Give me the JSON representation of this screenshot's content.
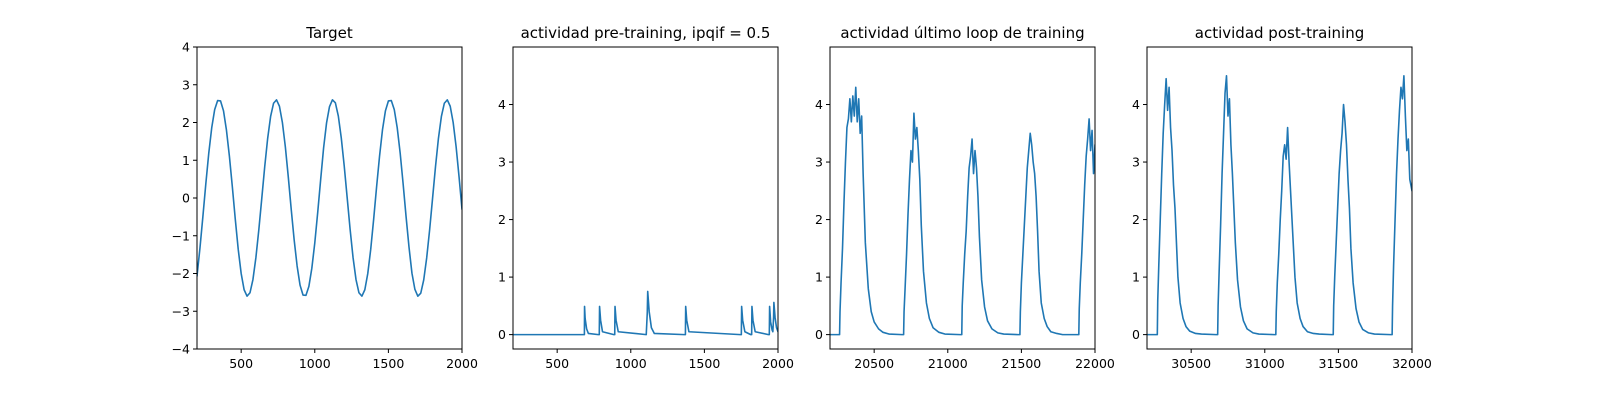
{
  "figure": {
    "background": "#ffffff",
    "line_color": "#1f77b4"
  },
  "chart_data": [
    {
      "type": "line",
      "title": "Target",
      "xlabel": "",
      "ylabel": "",
      "xlim": [
        200,
        2000
      ],
      "ylim": [
        -4,
        4
      ],
      "xticks": [
        500,
        1000,
        1500,
        2000
      ],
      "yticks": [
        -4,
        -3,
        -2,
        -1,
        0,
        1,
        2,
        3,
        4
      ],
      "xtick_labels": [
        "500",
        "1000",
        "1500",
        "2000"
      ],
      "ytick_labels": [
        "−4",
        "−3",
        "−2",
        "−1",
        "0",
        "1",
        "2",
        "3",
        "4"
      ],
      "grid": false,
      "series": [
        {
          "x": [
            200,
            220,
            240,
            260,
            280,
            300,
            320,
            340,
            360,
            380,
            400,
            420,
            440,
            460,
            480,
            500,
            520,
            540,
            560,
            580,
            600,
            620,
            640,
            660,
            680,
            700,
            720,
            740,
            760,
            780,
            800,
            820,
            840,
            860,
            880,
            900,
            920,
            940,
            960,
            980,
            1000,
            1020,
            1040,
            1060,
            1080,
            1100,
            1120,
            1140,
            1160,
            1180,
            1200,
            1220,
            1240,
            1260,
            1280,
            1300,
            1320,
            1340,
            1360,
            1380,
            1400,
            1420,
            1440,
            1460,
            1480,
            1500,
            1520,
            1540,
            1560,
            1580,
            1600,
            1620,
            1640,
            1660,
            1680,
            1700,
            1720,
            1740,
            1760,
            1780,
            1800,
            1820,
            1840,
            1860,
            1880,
            1900,
            1920,
            1940,
            1960,
            1980,
            2000
          ],
          "y": [
            -2.07,
            -1.33,
            -0.49,
            0.38,
            1.19,
            1.86,
            2.34,
            2.58,
            2.57,
            2.31,
            1.8,
            1.11,
            0.3,
            -0.56,
            -1.36,
            -2.0,
            -2.43,
            -2.6,
            -2.51,
            -2.16,
            -1.58,
            -0.84,
            -0.01,
            0.83,
            1.58,
            2.16,
            2.51,
            2.6,
            2.43,
            2.0,
            1.36,
            0.56,
            -0.3,
            -1.11,
            -1.8,
            -2.31,
            -2.57,
            -2.58,
            -2.34,
            -1.86,
            -1.19,
            -0.38,
            0.49,
            1.33,
            1.99,
            2.42,
            2.6,
            2.52,
            2.17,
            1.59,
            0.85,
            0.01,
            -0.83,
            -1.58,
            -2.16,
            -2.51,
            -2.6,
            -2.43,
            -2.0,
            -1.36,
            -0.56,
            0.3,
            1.11,
            1.81,
            2.31,
            2.57,
            2.58,
            2.34,
            1.86,
            1.19,
            0.38,
            -0.49,
            -1.3,
            -1.99,
            -2.42,
            -2.6,
            -2.52,
            -2.17,
            -1.59,
            -0.85,
            -0.01,
            0.83,
            1.58,
            2.16,
            2.51,
            2.6,
            2.43,
            2.0,
            1.36,
            0.56,
            -0.3
          ]
        }
      ]
    },
    {
      "type": "line",
      "title": "actividad pre-training, ipqif = 0.5",
      "xlabel": "",
      "ylabel": "",
      "xlim": [
        200,
        2000
      ],
      "ylim": [
        -0.25,
        5.0
      ],
      "xticks": [
        500,
        1000,
        1500,
        2000
      ],
      "yticks": [
        0,
        1,
        2,
        3,
        4
      ],
      "xtick_labels": [
        "500",
        "1000",
        "1500",
        "2000"
      ],
      "ytick_labels": [
        "0",
        "1",
        "2",
        "3",
        "4"
      ],
      "grid": false,
      "series": [
        {
          "x": [
            200,
            685,
            686,
            690,
            700,
            712,
            780,
            786,
            788,
            795,
            808,
            885,
            891,
            893,
            900,
            915,
            1105,
            1112,
            1115,
            1125,
            1140,
            1160,
            1365,
            1371,
            1373,
            1380,
            1395,
            1745,
            1751,
            1753,
            1760,
            1775,
            1815,
            1821,
            1823,
            1830,
            1845,
            1935,
            1941,
            1943,
            1950,
            1960,
            1965,
            1970,
            1972,
            1980,
            1990,
            2000
          ],
          "y": [
            0,
            0,
            0.49,
            0.28,
            0.1,
            0.02,
            0,
            0,
            0.49,
            0.25,
            0.05,
            0,
            0,
            0.49,
            0.25,
            0.05,
            0,
            0.38,
            0.75,
            0.4,
            0.12,
            0.02,
            0,
            0,
            0.49,
            0.25,
            0.05,
            0,
            0,
            0.49,
            0.25,
            0.05,
            0,
            0,
            0.49,
            0.25,
            0.05,
            0,
            0,
            0.49,
            0.22,
            0.08,
            0.05,
            0.3,
            0.56,
            0.3,
            0.12,
            0.05
          ]
        }
      ]
    },
    {
      "type": "line",
      "title": "actividad último loop de training",
      "xlabel": "",
      "ylabel": "",
      "xlim": [
        20200,
        22000
      ],
      "ylim": [
        -0.25,
        5.0
      ],
      "xticks": [
        20500,
        21000,
        21500,
        22000
      ],
      "yticks": [
        0,
        1,
        2,
        3,
        4
      ],
      "xtick_labels": [
        "20500",
        "21000",
        "21500",
        "22000"
      ],
      "ytick_labels": [
        "0",
        "1",
        "2",
        "3",
        "4"
      ],
      "grid": false,
      "series": [
        {
          "x": [
            20200,
            20265,
            20268,
            20275,
            20285,
            20295,
            20305,
            20315,
            20325,
            20335,
            20345,
            20355,
            20365,
            20375,
            20385,
            20395,
            20405,
            20415,
            20425,
            20440,
            20460,
            20480,
            20500,
            20530,
            20560,
            20600,
            20690,
            20700,
            20703,
            20710,
            20720,
            20730,
            20740,
            20750,
            20760,
            20770,
            20780,
            20790,
            20800,
            20810,
            20820,
            20835,
            20855,
            20875,
            20900,
            20940,
            20980,
            21085,
            21095,
            21098,
            21105,
            21115,
            21125,
            21135,
            21145,
            21155,
            21165,
            21175,
            21185,
            21195,
            21205,
            21215,
            21230,
            21250,
            21270,
            21300,
            21340,
            21380,
            21480,
            21490,
            21493,
            21500,
            21510,
            21520,
            21530,
            21540,
            21550,
            21560,
            21570,
            21580,
            21590,
            21600,
            21610,
            21620,
            21635,
            21655,
            21675,
            21700,
            21740,
            21780,
            21880,
            21890,
            21893,
            21900,
            21910,
            21920,
            21930,
            21940,
            21950,
            21960,
            21970,
            21980,
            21990,
            22000
          ],
          "y": [
            0,
            0,
            0.4,
            0.9,
            1.5,
            2.3,
            3.0,
            3.6,
            3.75,
            4.1,
            3.7,
            4.15,
            3.8,
            4.3,
            3.7,
            4.1,
            3.5,
            3.8,
            2.8,
            1.6,
            0.8,
            0.4,
            0.22,
            0.1,
            0.04,
            0.01,
            0,
            0,
            0.4,
            0.8,
            1.4,
            2.1,
            2.7,
            3.2,
            3.0,
            3.85,
            3.4,
            3.6,
            3.2,
            2.7,
            1.9,
            1.1,
            0.55,
            0.28,
            0.12,
            0.04,
            0.01,
            0,
            0,
            0.5,
            0.9,
            1.4,
            1.8,
            2.4,
            2.9,
            3.1,
            3.4,
            2.8,
            3.2,
            2.9,
            2.4,
            1.7,
            0.95,
            0.48,
            0.24,
            0.1,
            0.03,
            0.01,
            0,
            0,
            0.4,
            0.9,
            1.4,
            1.9,
            2.4,
            2.9,
            3.2,
            3.5,
            3.3,
            3.0,
            2.8,
            2.4,
            1.8,
            1.1,
            0.55,
            0.28,
            0.14,
            0.05,
            0.02,
            0,
            0,
            0,
            0.45,
            0.9,
            1.4,
            2.0,
            2.6,
            3.1,
            3.4,
            3.75,
            3.2,
            3.55,
            2.8,
            3.3
          ]
        }
      ]
    },
    {
      "type": "line",
      "title": "actividad post-training",
      "xlabel": "",
      "ylabel": "",
      "xlim": [
        30200,
        32000
      ],
      "ylim": [
        -0.25,
        5.0
      ],
      "xticks": [
        30500,
        31000,
        31500,
        32000
      ],
      "yticks": [
        0,
        1,
        2,
        3,
        4
      ],
      "xtick_labels": [
        "30500",
        "31000",
        "31500",
        "32000"
      ],
      "ytick_labels": [
        "0",
        "1",
        "2",
        "3",
        "4"
      ],
      "grid": false,
      "series": [
        {
          "x": [
            30200,
            30270,
            30273,
            30280,
            30290,
            30300,
            30310,
            30320,
            30330,
            30340,
            30350,
            30360,
            30370,
            30380,
            30390,
            30400,
            30410,
            30425,
            30445,
            30465,
            30490,
            30530,
            30570,
            30670,
            30680,
            30683,
            30690,
            30700,
            30710,
            30720,
            30730,
            30740,
            30750,
            30760,
            30770,
            30780,
            30790,
            30800,
            30815,
            30835,
            30855,
            30880,
            30920,
            30960,
            31065,
            31075,
            31078,
            31085,
            31095,
            31105,
            31115,
            31125,
            31135,
            31145,
            31155,
            31165,
            31175,
            31185,
            31195,
            31205,
            31220,
            31240,
            31260,
            31290,
            31330,
            31370,
            31455,
            31465,
            31468,
            31475,
            31485,
            31495,
            31505,
            31515,
            31525,
            31535,
            31545,
            31555,
            31565,
            31575,
            31585,
            31600,
            31620,
            31640,
            31665,
            31705,
            31745,
            31855,
            31865,
            31868,
            31875,
            31885,
            31895,
            31905,
            31915,
            31925,
            31935,
            31945,
            31955,
            31965,
            31975,
            31985,
            32000
          ],
          "y": [
            0,
            0,
            0.6,
            1.2,
            2.0,
            2.8,
            3.5,
            4.0,
            4.45,
            3.9,
            4.3,
            3.6,
            3.2,
            2.6,
            2.2,
            1.6,
            1.0,
            0.55,
            0.28,
            0.14,
            0.06,
            0.02,
            0.01,
            0,
            0,
            0.5,
            1.1,
            1.9,
            2.8,
            3.5,
            4.2,
            4.5,
            3.8,
            4.1,
            3.3,
            2.8,
            2.2,
            1.6,
            0.95,
            0.48,
            0.24,
            0.1,
            0.03,
            0.01,
            0,
            0,
            0.4,
            0.9,
            1.4,
            2.0,
            2.5,
            3.1,
            3.3,
            3.05,
            3.6,
            3.0,
            2.5,
            2.0,
            1.5,
            1.0,
            0.55,
            0.28,
            0.14,
            0.05,
            0.02,
            0.01,
            0,
            0,
            0.5,
            1.0,
            1.6,
            2.2,
            2.8,
            3.2,
            3.5,
            4.0,
            3.7,
            3.3,
            2.7,
            2.2,
            1.5,
            0.9,
            0.45,
            0.22,
            0.09,
            0.03,
            0.01,
            0,
            0,
            0.5,
            1.2,
            2.0,
            2.8,
            3.4,
            3.9,
            4.3,
            4.1,
            4.5,
            3.8,
            3.2,
            3.4,
            2.7,
            2.5
          ]
        }
      ]
    }
  ]
}
